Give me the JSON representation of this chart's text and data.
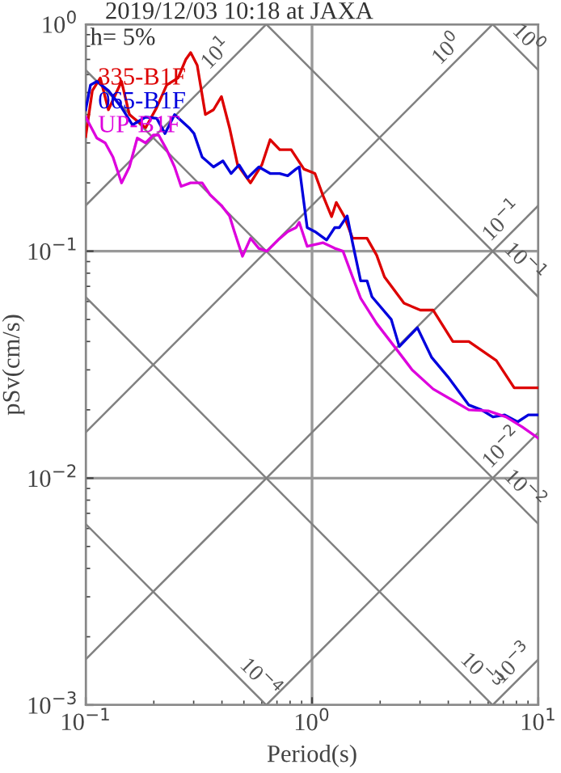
{
  "chart_data": {
    "type": "line",
    "title": "2019/12/03 10:18 at JAXA",
    "xlabel": "Period(s)",
    "ylabel": "pSv(cm/s)",
    "log": "xy",
    "xlim": [
      0.1,
      10
    ],
    "ylim": [
      0.001,
      1
    ],
    "xticks": [
      {
        "value": 0.1,
        "label": "10$^{−1}$"
      },
      {
        "value": 1,
        "label": "10$^{0}$"
      },
      {
        "value": 10,
        "label": "10$^{1}$"
      }
    ],
    "yticks": [
      {
        "value": 0.001,
        "label": "10$^{−3}$"
      },
      {
        "value": 0.01,
        "label": "10$^{−2}$"
      },
      {
        "value": 0.1,
        "label": "10$^{−1}$"
      },
      {
        "value": 1,
        "label": "10$^{0}$"
      }
    ],
    "grid": true,
    "legend": "top left",
    "annotations": [
      "h= 5%",
      {
        "text": "10$^{1}$",
        "x": 0.42,
        "y": 0.668
      },
      {
        "text": "10$^{0}$",
        "x": 4.4,
        "y": 0.7
      },
      {
        "text": "10$^{0}$",
        "x": 8.1,
        "y": 0.775
      },
      {
        "text": "10$^{−1}$",
        "x": 7.7,
        "y": 0.1224
      },
      {
        "text": "10$^{−1}$",
        "x": 7.8,
        "y": 0.0805
      },
      {
        "text": "10$^{−2}$",
        "x": 7.7,
        "y": 0.01224
      },
      {
        "text": "10$^{−2}$",
        "x": 7.8,
        "y": 0.00805
      },
      {
        "text": "10$^{−4}$",
        "x": 0.53,
        "y": 0.001185
      },
      {
        "text": "10$^{−3}$",
        "x": 5.0,
        "y": 0.001256
      },
      {
        "text": "10$^{−3}$",
        "x": 8.6,
        "y": 0.00137
      }
    ],
    "series": [
      {
        "color": "#808080",
        "x": [
          6.28,
          10
        ],
        "values": [
          1,
          0.628
        ]
      },
      {
        "color": "#808080",
        "x": [
          0.628,
          10
        ],
        "values": [
          1,
          0.0628
        ]
      },
      {
        "color": "#808080",
        "x": [
          0.1,
          10
        ],
        "values": [
          0.628,
          0.00628
        ]
      },
      {
        "color": "#808080",
        "x": [
          0.1,
          6.28
        ],
        "values": [
          0.0628,
          0.001
        ]
      },
      {
        "color": "#808080",
        "x": [
          0.1,
          0.628
        ],
        "values": [
          0.00628,
          0.001
        ]
      },
      {
        "color": "#808080",
        "x": [
          0.1,
          0.628
        ],
        "values": [
          0.159,
          1
        ]
      },
      {
        "color": "#808080",
        "x": [
          0.1,
          6.28
        ],
        "values": [
          0.0159,
          1
        ]
      },
      {
        "color": "#808080",
        "x": [
          0.1,
          10
        ],
        "values": [
          0.00159,
          0.159
        ]
      },
      {
        "color": "#808080",
        "x": [
          0.628,
          10
        ],
        "values": [
          0.001,
          0.0159
        ]
      },
      {
        "color": "#808080",
        "x": [
          6.28,
          10
        ],
        "values": [
          0.001,
          0.00159
        ]
      },
      {
        "name": "335-B1F",
        "color": "#dd0000",
        "x": [
          0.1,
          0.107,
          0.116,
          0.126,
          0.144,
          0.156,
          0.184,
          0.206,
          0.228,
          0.256,
          0.277,
          0.291,
          0.311,
          0.338,
          0.367,
          0.398,
          0.432,
          0.469,
          0.535,
          0.6,
          0.653,
          0.72,
          0.809,
          0.921,
          1.03,
          1.12,
          1.22,
          1.28,
          1.39,
          1.51,
          1.75,
          1.93,
          2.09,
          2.55,
          3.01,
          3.43,
          4.19,
          4.93,
          6.52,
          7.82,
          9.03,
          10
        ],
        "values": [
          0.32,
          0.51,
          0.58,
          0.42,
          0.56,
          0.4,
          0.35,
          0.43,
          0.54,
          0.58,
          0.7,
          0.75,
          0.66,
          0.4,
          0.42,
          0.48,
          0.35,
          0.24,
          0.2,
          0.24,
          0.31,
          0.28,
          0.28,
          0.23,
          0.22,
          0.175,
          0.142,
          0.164,
          0.142,
          0.114,
          0.114,
          0.096,
          0.077,
          0.059,
          0.055,
          0.055,
          0.04,
          0.04,
          0.033,
          0.025,
          0.025,
          0.025
        ]
      },
      {
        "name": "065-B1F",
        "color": "#0000dd",
        "x": [
          0.1,
          0.105,
          0.112,
          0.126,
          0.144,
          0.161,
          0.184,
          0.206,
          0.224,
          0.247,
          0.286,
          0.301,
          0.327,
          0.367,
          0.404,
          0.439,
          0.476,
          0.518,
          0.582,
          0.653,
          0.72,
          0.781,
          0.849,
          0.878,
          0.952,
          1.03,
          1.16,
          1.26,
          1.32,
          1.43,
          1.51,
          1.64,
          1.75,
          1.84,
          2.24,
          2.43,
          2.92,
          3.38,
          3.98,
          4.93,
          5.6,
          6.3,
          7.1,
          8.1,
          9.03,
          10
        ],
        "values": [
          0.42,
          0.54,
          0.56,
          0.51,
          0.43,
          0.36,
          0.39,
          0.385,
          0.33,
          0.4,
          0.35,
          0.33,
          0.26,
          0.235,
          0.25,
          0.22,
          0.24,
          0.21,
          0.235,
          0.22,
          0.22,
          0.215,
          0.23,
          0.235,
          0.127,
          0.122,
          0.112,
          0.127,
          0.127,
          0.143,
          0.109,
          0.074,
          0.074,
          0.063,
          0.05,
          0.038,
          0.046,
          0.034,
          0.028,
          0.021,
          0.02,
          0.0186,
          0.019,
          0.0177,
          0.019,
          0.019
        ]
      },
      {
        "name": "UP-B1F",
        "color": "#dd00dd",
        "x": [
          0.1,
          0.112,
          0.122,
          0.132,
          0.144,
          0.156,
          0.169,
          0.184,
          0.199,
          0.21,
          0.228,
          0.247,
          0.264,
          0.291,
          0.327,
          0.355,
          0.398,
          0.432,
          0.454,
          0.493,
          0.535,
          0.582,
          0.632,
          0.708,
          0.781,
          0.849,
          0.878,
          0.952,
          1.12,
          1.26,
          1.37,
          1.51,
          1.64,
          1.93,
          2.36,
          2.77,
          3.43,
          4.19,
          4.93,
          6.0,
          7.2,
          8.5,
          10
        ],
        "values": [
          0.39,
          0.315,
          0.3,
          0.26,
          0.2,
          0.235,
          0.315,
          0.3,
          0.325,
          0.325,
          0.28,
          0.235,
          0.193,
          0.2,
          0.2,
          0.177,
          0.159,
          0.143,
          0.122,
          0.095,
          0.114,
          0.103,
          0.1,
          0.112,
          0.122,
          0.127,
          0.134,
          0.105,
          0.109,
          0.103,
          0.1,
          0.077,
          0.062,
          0.048,
          0.037,
          0.03,
          0.0247,
          0.022,
          0.02,
          0.0198,
          0.0186,
          0.0168,
          0.015
        ]
      }
    ]
  }
}
